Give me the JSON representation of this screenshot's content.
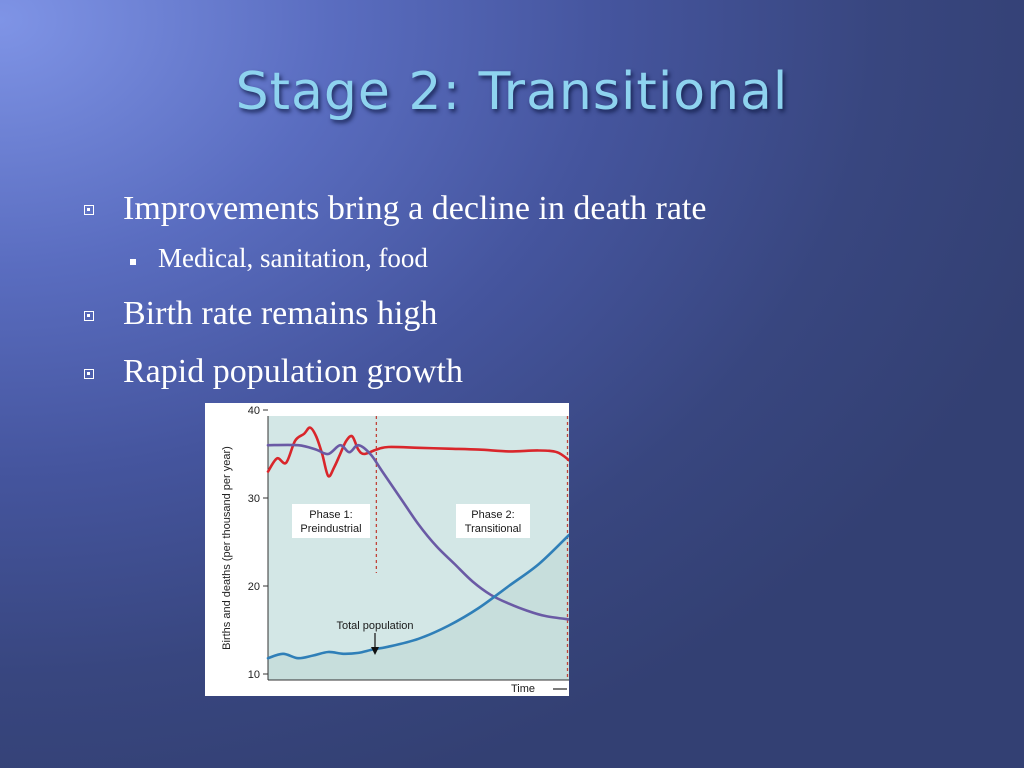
{
  "slide": {
    "title": "Stage 2: Transitional",
    "bullets": [
      {
        "level": 1,
        "text": "Improvements bring a decline in death rate"
      },
      {
        "level": 2,
        "text": "Medical, sanitation, food"
      },
      {
        "level": 1,
        "text": "Birth rate remains high"
      },
      {
        "level": 1,
        "text": "Rapid population growth"
      }
    ]
  },
  "colors": {
    "title": "#8ed3ef",
    "birth_rate": "#d9262b",
    "death_rate": "#6a5aa5",
    "population": "#2f7fb8",
    "plot_fill": "#d3e7e6",
    "phase_line": "#c0443a"
  },
  "chart_data": {
    "type": "line",
    "ylabel": "Births and deaths (per thousand per year)",
    "xlabel": "Time",
    "yticks": [
      10,
      20,
      30,
      40
    ],
    "ylim": [
      10,
      40
    ],
    "xlim": [
      0,
      100
    ],
    "phase_boundaries": [
      36,
      100
    ],
    "phases": [
      {
        "line1": "Phase 1:",
        "line2": "Preindustrial"
      },
      {
        "line1": "Phase 2:",
        "line2": "Transitional"
      }
    ],
    "annotation": "Total population",
    "series": [
      {
        "key": "birth",
        "x": [
          0,
          3,
          6,
          9,
          12,
          14,
          16,
          18,
          20,
          22,
          24,
          26,
          28,
          30,
          32,
          36,
          40,
          50,
          60,
          70,
          80,
          90,
          96,
          100
        ],
        "y": [
          33.0,
          34.5,
          34.0,
          36.5,
          37.3,
          38.0,
          37.0,
          35.0,
          32.5,
          33.5,
          35.0,
          36.5,
          37.0,
          35.5,
          35.0,
          35.5,
          35.8,
          35.7,
          35.6,
          35.5,
          35.3,
          35.4,
          35.2,
          34.3
        ]
      },
      {
        "key": "death",
        "x": [
          0,
          10,
          16,
          20,
          24,
          27,
          30,
          34,
          38,
          44,
          50,
          56,
          62,
          68,
          74,
          80,
          86,
          92,
          100
        ],
        "y": [
          36.0,
          36.0,
          35.5,
          35.0,
          36.0,
          35.2,
          36.0,
          35.0,
          33.0,
          30.0,
          27.0,
          24.5,
          22.5,
          20.5,
          19.0,
          18.0,
          17.2,
          16.6,
          16.2
        ],
        "y_end": 15.8
      },
      {
        "key": "population",
        "x": [
          0,
          5,
          10,
          15,
          20,
          25,
          30,
          35,
          40,
          50,
          60,
          70,
          80,
          90,
          100
        ],
        "y": [
          11.8,
          12.3,
          11.8,
          12.1,
          12.5,
          12.3,
          12.4,
          12.8,
          13.1,
          14.0,
          15.5,
          17.5,
          20.0,
          22.5,
          25.8
        ]
      }
    ]
  }
}
